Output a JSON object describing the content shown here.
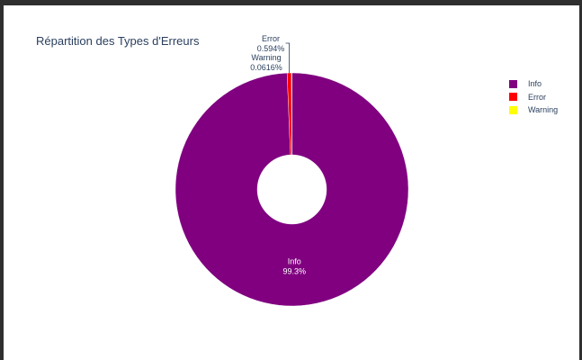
{
  "title": "Répartition des Types d'Erreurs",
  "chart_data": {
    "type": "pie",
    "hole": true,
    "title": "Répartition des Types d'Erreurs",
    "slices": [
      {
        "name": "Info",
        "percent": 99.3,
        "label": "99.3%",
        "color": "#800080"
      },
      {
        "name": "Error",
        "percent": 0.594,
        "label": "0.594%",
        "color": "#ff0000"
      },
      {
        "name": "Warning",
        "percent": 0.0616,
        "label": "0.0616%",
        "color": "#ffff00"
      }
    ],
    "legend_position": "top-right",
    "legend": [
      "Info",
      "Error",
      "Warning"
    ]
  }
}
